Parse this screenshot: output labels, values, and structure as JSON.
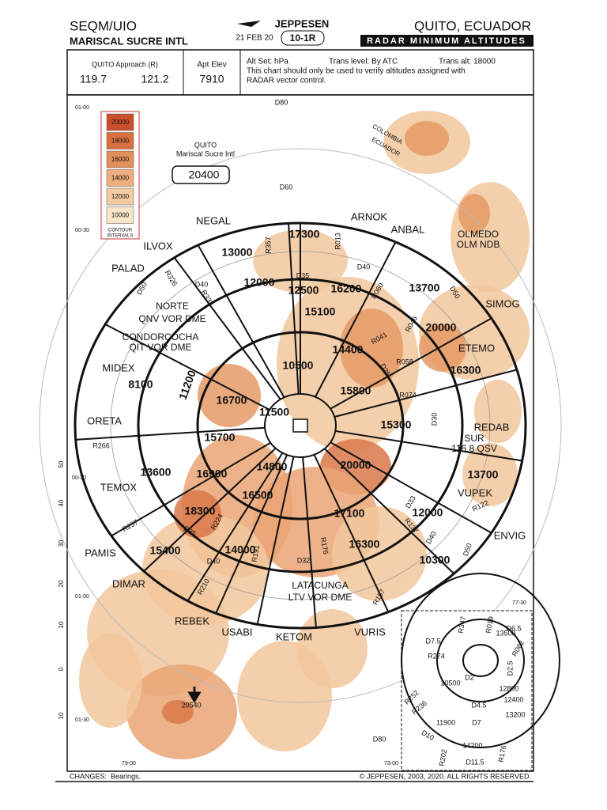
{
  "header": {
    "ident": "SEQM/UIO",
    "airport": "MARISCAL SUCRE INTL",
    "brand": "JEPPESEN",
    "date": "21 FEB 20",
    "chart_no": "10-1R",
    "location": "QUITO, ECUADOR",
    "chart_title": "RADAR MINIMUM ALTITUDES"
  },
  "info": {
    "approach_label": "QUITO Approach (R)",
    "freqs": [
      "119.7",
      "121.2"
    ],
    "elev_label": "Apt Elev",
    "elev": "7910",
    "altset": "Alt Set: hPa",
    "trans_level": "Trans level: By ATC",
    "trans_alt": "Trans alt: 18000",
    "note": [
      "This chart should only be used to verify altitudes assigned with",
      "RADAR vector control."
    ]
  },
  "legend": {
    "levels": [
      "20000",
      "18000",
      "16000",
      "14000",
      "12000",
      "10000"
    ],
    "caption": [
      "CONTOUR",
      "INTERVALS"
    ]
  },
  "map": {
    "airport_label": "QUITO",
    "airport_name": "Mariscal Sucre Intl",
    "msa": "20400",
    "peak": "20540",
    "fixes": [
      "NEGAL",
      "ARNOK",
      "ANBAL",
      "ILVOX",
      "PALAD",
      "SIMOG",
      "ETEMO",
      "MIDEX",
      "ORETA",
      "REDAB",
      "TEMOX",
      "VUPEK",
      "ENVIG",
      "PAMIS",
      "DIMAR",
      "REBEK",
      "USABI",
      "KETOM",
      "VURIS"
    ],
    "navaids": [
      "NORTE",
      "QNV VOR DME",
      "CONDORCOCHA",
      "QIT VOR DME",
      "SUR",
      "116.8 QSV",
      "LATACUNGA",
      "LTV VOR DME",
      "OLMEDO",
      "OLM NDB"
    ],
    "altitudes": [
      "13000",
      "17300",
      "12000",
      "12500",
      "16200",
      "13700",
      "15100",
      "20000",
      "14400",
      "16300",
      "10500",
      "8100",
      "11200",
      "16700",
      "15800",
      "11500",
      "15300",
      "15700",
      "13600",
      "16900",
      "14800",
      "20000",
      "13700",
      "16500",
      "18300",
      "12000",
      "17100",
      "16300",
      "15400",
      "14000",
      "10300"
    ],
    "radials": [
      "R357",
      "R013",
      "D35",
      "D40",
      "R326",
      "D50",
      "R333",
      "D40",
      "R060",
      "D50",
      "R041",
      "R046",
      "R058",
      "D25",
      "R074",
      "D30",
      "R266",
      "R237",
      "R224",
      "D35",
      "R210",
      "D40",
      "R191",
      "D32",
      "R176",
      "R137",
      "D40",
      "D50",
      "R157",
      "R122",
      "D33",
      "D60",
      "D80",
      "D80"
    ],
    "coordinates": [
      "01-00",
      "00-30",
      "00-30",
      "01-00",
      "01-30",
      "79-00",
      "73-00",
      "77-30"
    ],
    "scale": [
      "50",
      "40",
      "30",
      "20",
      "10",
      "0",
      "10"
    ],
    "countries": [
      "COLOMBIA",
      "ECUADOR"
    ]
  },
  "inset": {
    "labels": [
      "R347",
      "R019",
      "13500",
      "D6.5",
      "D7.5",
      "R062",
      "R274",
      "D2.5",
      "D2",
      "10500",
      "12800",
      "12400",
      "D4.5",
      "R252",
      "R236",
      "13200",
      "11900",
      "D7",
      "D10",
      "14200",
      "R202",
      "D11.5",
      "R176"
    ]
  },
  "footer": {
    "changes": "CHANGES:",
    "changes_text": "Bearings.",
    "copyright": "© JEPPESEN, 2003, 2020. ALL RIGHTS RESERVED."
  }
}
